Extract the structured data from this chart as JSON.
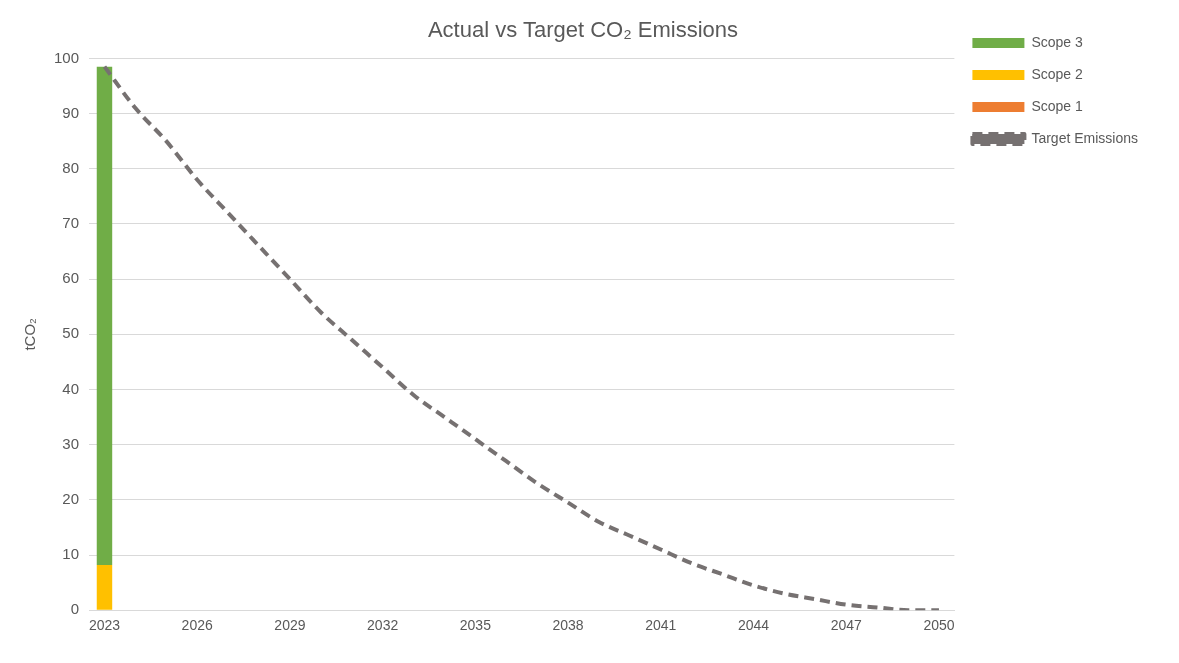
{
  "chart_data": {
    "type": "bar",
    "title": "Actual vs Target CO₂ Emissions",
    "ylabel": "tCO₂",
    "categories": [
      "2023",
      null,
      null,
      "2026",
      null,
      null,
      "2029",
      null,
      null,
      "2032",
      null,
      null,
      "2035",
      null,
      null,
      "2038",
      null,
      null,
      "2041",
      null,
      null,
      "2044",
      null,
      null,
      "2047",
      null,
      null,
      "2050"
    ],
    "stacked": true,
    "series": [
      {
        "name": "Scope 1",
        "color": "#ed7d31",
        "values": [
          0,
          null,
          null,
          null,
          null,
          null,
          null,
          null,
          null,
          null,
          null,
          null,
          null,
          null,
          null,
          null,
          null,
          null,
          null,
          null,
          null,
          null,
          null,
          null,
          null,
          null,
          null,
          null
        ]
      },
      {
        "name": "Scope 2",
        "color": "#ffc000",
        "values": [
          8.2,
          null,
          null,
          null,
          null,
          null,
          null,
          null,
          null,
          null,
          null,
          null,
          null,
          null,
          null,
          null,
          null,
          null,
          null,
          null,
          null,
          null,
          null,
          null,
          null,
          null,
          null,
          null
        ]
      },
      {
        "name": "Scope 3",
        "color": "#70ad47",
        "values": [
          90.3,
          null,
          null,
          null,
          null,
          null,
          null,
          null,
          null,
          null,
          null,
          null,
          null,
          null,
          null,
          null,
          null,
          null,
          null,
          null,
          null,
          null,
          null,
          null,
          null,
          null,
          null,
          null
        ]
      },
      {
        "name": "Target Emissions",
        "type": "line",
        "color": "#767171",
        "line_style": "dashed",
        "values": [
          98.5,
          91,
          85,
          78,
          72,
          66,
          60,
          54,
          49,
          44,
          39,
          35,
          31,
          27,
          23,
          19.5,
          16,
          13.5,
          11,
          8.5,
          6.5,
          4.5,
          3,
          2,
          1,
          0.5,
          0,
          0
        ]
      }
    ],
    "ylim": [
      0,
      100
    ],
    "yticks": [
      0,
      10,
      20,
      30,
      40,
      50,
      60,
      70,
      80,
      90,
      100
    ],
    "grid": "y",
    "legend": "right",
    "marker": "none"
  }
}
